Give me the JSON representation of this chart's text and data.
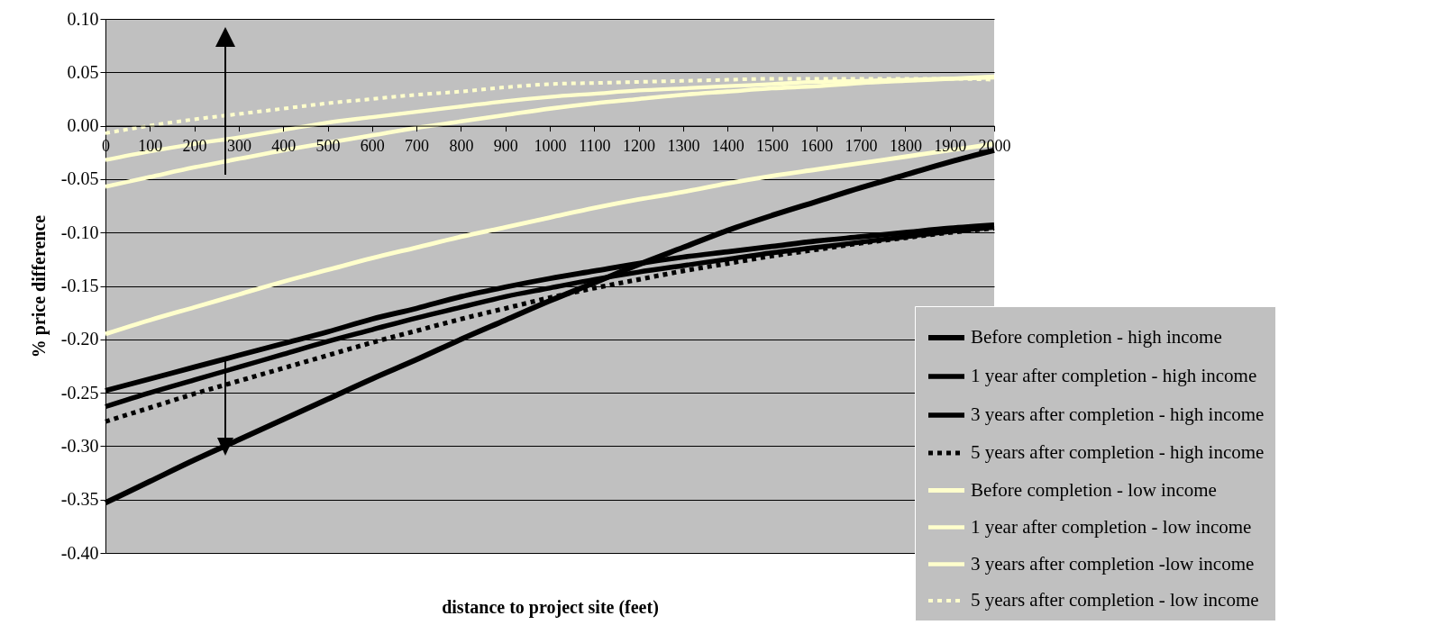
{
  "chart_data": {
    "type": "line",
    "xlabel": "distance to project site (feet)",
    "ylabel": "% price difference",
    "categories": [
      "0",
      "100",
      "200",
      "300",
      "400",
      "500",
      "600",
      "700",
      "800",
      "900",
      "1000",
      "1100",
      "1200",
      "1300",
      "1400",
      "1500",
      "1600",
      "1700",
      "1800",
      "1900",
      "2000"
    ],
    "series": [
      {
        "name": "Before completion - high income",
        "color": "#000000",
        "line_style": "solid",
        "values": [
          -0.353,
          -0.333,
          -0.313,
          -0.294,
          -0.275,
          -0.256,
          -0.237,
          -0.219,
          -0.2,
          -0.182,
          -0.164,
          -0.147,
          -0.13,
          -0.114,
          -0.098,
          -0.084,
          -0.071,
          -0.058,
          -0.046,
          -0.034,
          -0.023
        ]
      },
      {
        "name": "1 year after completion - high income",
        "color": "#000000",
        "line_style": "solid",
        "values": [
          -0.248,
          -0.237,
          -0.226,
          -0.215,
          -0.204,
          -0.193,
          -0.181,
          -0.171,
          -0.16,
          -0.151,
          -0.143,
          -0.136,
          -0.129,
          -0.123,
          -0.118,
          -0.113,
          -0.108,
          -0.104,
          -0.1,
          -0.096,
          -0.093
        ]
      },
      {
        "name": "3 years after completion - high income",
        "color": "#000000",
        "line_style": "solid",
        "values": [
          -0.263,
          -0.25,
          -0.238,
          -0.226,
          -0.214,
          -0.202,
          -0.191,
          -0.18,
          -0.17,
          -0.16,
          -0.152,
          -0.144,
          -0.137,
          -0.131,
          -0.125,
          -0.119,
          -0.114,
          -0.109,
          -0.104,
          -0.099,
          -0.095
        ]
      },
      {
        "name": "5 years after completion - high income",
        "color": "#000000",
        "line_style": "dashed",
        "values": [
          -0.277,
          -0.264,
          -0.251,
          -0.239,
          -0.227,
          -0.215,
          -0.203,
          -0.192,
          -0.181,
          -0.171,
          -0.161,
          -0.152,
          -0.144,
          -0.136,
          -0.129,
          -0.122,
          -0.116,
          -0.11,
          -0.105,
          -0.1,
          -0.096
        ]
      },
      {
        "name": "Before completion - low income",
        "color": "#ffffcc",
        "line_style": "solid",
        "values": [
          -0.195,
          -0.182,
          -0.17,
          -0.158,
          -0.146,
          -0.135,
          -0.124,
          -0.114,
          -0.104,
          -0.095,
          -0.086,
          -0.077,
          -0.069,
          -0.062,
          -0.054,
          -0.047,
          -0.041,
          -0.035,
          -0.029,
          -0.023,
          -0.017
        ]
      },
      {
        "name": "1 year after completion - low income",
        "color": "#ffffcc",
        "line_style": "solid",
        "values": [
          -0.057,
          -0.048,
          -0.039,
          -0.031,
          -0.023,
          -0.016,
          -0.009,
          -0.002,
          0.004,
          0.01,
          0.016,
          0.021,
          0.025,
          0.029,
          0.032,
          0.035,
          0.037,
          0.04,
          0.042,
          0.044,
          0.046
        ]
      },
      {
        "name": "3 years after completion -low income",
        "color": "#ffffcc",
        "line_style": "solid",
        "values": [
          -0.032,
          -0.024,
          -0.017,
          -0.011,
          -0.004,
          0.003,
          0.008,
          0.013,
          0.018,
          0.023,
          0.027,
          0.03,
          0.033,
          0.035,
          0.037,
          0.039,
          0.041,
          0.042,
          0.043,
          0.044,
          0.045
        ]
      },
      {
        "name": "5 years after completion - low income",
        "color": "#ffffcc",
        "line_style": "dashed",
        "values": [
          -0.007,
          0.0,
          0.006,
          0.011,
          0.016,
          0.021,
          0.025,
          0.029,
          0.032,
          0.036,
          0.039,
          0.04,
          0.041,
          0.042,
          0.043,
          0.044,
          0.044,
          0.044,
          0.044,
          0.044,
          0.043
        ]
      }
    ],
    "ylim": [
      -0.4,
      0.1
    ],
    "yticks": [
      {
        "value": -0.4,
        "label": "-0.40"
      },
      {
        "value": -0.35,
        "label": "-0.35"
      },
      {
        "value": -0.3,
        "label": "-0.30"
      },
      {
        "value": -0.25,
        "label": "-0.25"
      },
      {
        "value": -0.2,
        "label": "-0.20"
      },
      {
        "value": -0.15,
        "label": "-0.15"
      },
      {
        "value": -0.1,
        "label": "-0.10"
      },
      {
        "value": -0.05,
        "label": "-0.05"
      },
      {
        "value": 0,
        "label": "0.00"
      },
      {
        "value": 0.05,
        "label": "0.05"
      },
      {
        "value": 0.1,
        "label": "0.10"
      }
    ],
    "grid": "y",
    "legend": "bottom right",
    "marker": "none"
  }
}
